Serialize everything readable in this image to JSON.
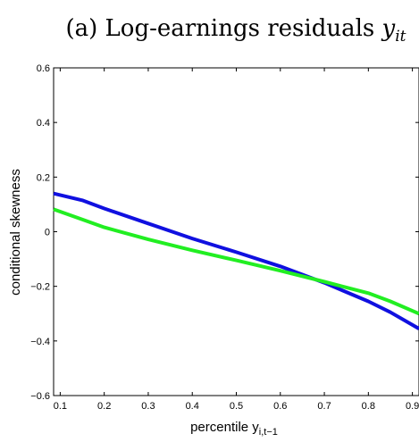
{
  "chart_data": {
    "type": "line",
    "title_prefix": "(a) Log-earnings residuals ",
    "title_var": "y",
    "title_sub": "it",
    "xlabel": "percentile y",
    "xlabel_sub": "i,t−1",
    "ylabel": "conditional skewness",
    "xlim": [
      0.085,
      0.915
    ],
    "ylim": [
      -0.6,
      0.6
    ],
    "xticks": [
      0.1,
      0.2,
      0.3,
      0.4,
      0.5,
      0.6,
      0.7,
      0.8,
      0.9
    ],
    "xtick_labels": [
      "0.1",
      "0.2",
      "0.3",
      "0.4",
      "0.5",
      "0.6",
      "0.7",
      "0.8",
      "0.9"
    ],
    "yticks": [
      -0.6,
      -0.4,
      -0.2,
      0,
      0.2,
      0.4,
      0.6
    ],
    "ytick_labels": [
      "−0.6",
      "−0.4",
      "−0.2",
      "0",
      "0.2",
      "0.4",
      "0.6"
    ],
    "grid": false,
    "series": [
      {
        "color": "#1010e0",
        "x": [
          0.085,
          0.15,
          0.2,
          0.3,
          0.4,
          0.5,
          0.6,
          0.7,
          0.8,
          0.85,
          0.915
        ],
        "y": [
          0.14,
          0.115,
          0.085,
          0.03,
          -0.025,
          -0.075,
          -0.127,
          -0.187,
          -0.255,
          -0.295,
          -0.355
        ]
      },
      {
        "color": "#22ee22",
        "x": [
          0.085,
          0.15,
          0.2,
          0.3,
          0.4,
          0.5,
          0.6,
          0.7,
          0.8,
          0.85,
          0.915
        ],
        "y": [
          0.082,
          0.045,
          0.016,
          -0.028,
          -0.068,
          -0.105,
          -0.143,
          -0.183,
          -0.225,
          -0.255,
          -0.3
        ]
      }
    ]
  }
}
